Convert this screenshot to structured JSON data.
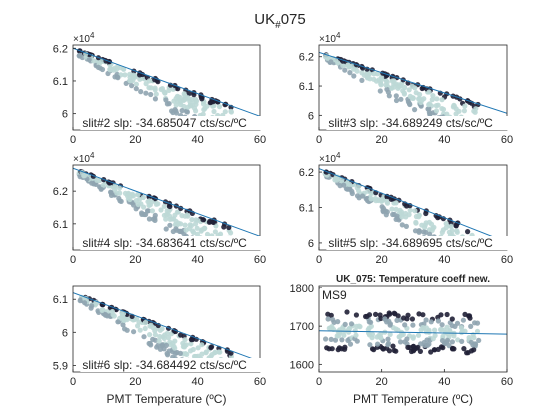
{
  "figure": {
    "title": "UK",
    "title_sub": "#",
    "title_tail": "075"
  },
  "colors": {
    "axis": "#262626",
    "fit_line": "#1f77b4",
    "point_light": "#bcd8d6",
    "point_mid": "#8fa4b0",
    "point_dark": "#202036"
  },
  "chart_data": [
    {
      "type": "scatter",
      "panel": "slit2",
      "annotation": "slit#2 slp: -34.685047 cts/sc/ºC",
      "exponent_label": "×10",
      "exponent_power": "4",
      "xlim": [
        0,
        60
      ],
      "ylim": [
        5.95,
        6.21
      ],
      "x_ticks": [
        "0",
        "20",
        "40",
        "60"
      ],
      "y_ticks": [
        "6",
        "6.1",
        "6.2"
      ],
      "fit": {
        "intercept": 6.2,
        "slope": -0.0034685
      },
      "xlabel": ""
    },
    {
      "type": "scatter",
      "panel": "slit3",
      "annotation": "slit#3 slp: -34.689249 cts/sc/ºC",
      "exponent_label": "×10",
      "exponent_power": "4",
      "xlim": [
        0,
        60
      ],
      "ylim": [
        5.95,
        6.24
      ],
      "x_ticks": [
        "0",
        "20",
        "40",
        "60"
      ],
      "y_ticks": [
        "6",
        "6.1",
        "6.2"
      ],
      "fit": {
        "intercept": 6.215,
        "slope": -0.0034689
      },
      "xlabel": ""
    },
    {
      "type": "scatter",
      "panel": "slit4",
      "annotation": "slit#4 slp: -34.683641 cts/sc/ºC",
      "exponent_label": "×10",
      "exponent_power": "4",
      "xlim": [
        0,
        60
      ],
      "ylim": [
        6.02,
        6.28
      ],
      "x_ticks": [
        "0",
        "20",
        "40",
        "60"
      ],
      "y_ticks": [
        "6.1",
        "6.2"
      ],
      "fit": {
        "intercept": 6.27,
        "slope": -0.0034684
      },
      "xlabel": ""
    },
    {
      "type": "scatter",
      "panel": "slit5",
      "annotation": "slit#5 slp: -34.689695 cts/sc/ºC",
      "exponent_label": "×10",
      "exponent_power": "4",
      "xlim": [
        0,
        60
      ],
      "ylim": [
        5.98,
        6.22
      ],
      "x_ticks": [
        "0",
        "20",
        "40",
        "60"
      ],
      "y_ticks": [
        "6",
        "6.1",
        "6.2"
      ],
      "fit": {
        "intercept": 6.21,
        "slope": -0.003469
      },
      "xlabel": ""
    },
    {
      "type": "scatter",
      "panel": "slit6",
      "annotation": "slit#6 slp: -34.684492 cts/sc/ºC",
      "exponent_label": "",
      "exponent_power": "",
      "xlim": [
        0,
        60
      ],
      "ylim": [
        5.88,
        6.14
      ],
      "x_ticks": [
        "0",
        "20",
        "40",
        "60"
      ],
      "y_ticks": [
        "5.9",
        "6",
        "6.1"
      ],
      "fit": {
        "intercept": 6.12,
        "slope": -0.0034684
      },
      "xlabel": "PMT Temperature (ºC)"
    },
    {
      "type": "scatter",
      "panel": "ms9",
      "title": "UK_075: Temperature coeff new.",
      "annotation": "MS9",
      "exponent_label": "",
      "exponent_power": "",
      "xlim": [
        0,
        60
      ],
      "ylim": [
        1580,
        1805
      ],
      "x_ticks": [
        "0",
        "20",
        "40",
        "60"
      ],
      "y_ticks": [
        "1600",
        "1700",
        "1800"
      ],
      "fit": {
        "intercept": 1688,
        "slope": -0.15
      },
      "xlabel": "PMT Temperature (ºC)"
    }
  ]
}
